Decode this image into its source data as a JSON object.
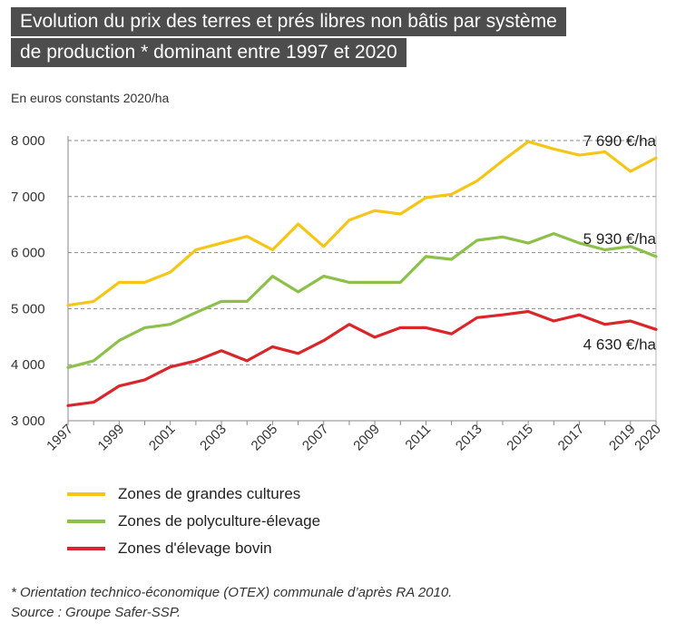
{
  "title": {
    "line1": "Evolution du prix des terres et prés libres non bâtis par système",
    "line2": "de production * dominant entre 1997 et 2020"
  },
  "units_label": "En euros constants 2020/ha",
  "chart_data": {
    "type": "line",
    "x": [
      1997,
      1998,
      1999,
      2000,
      2001,
      2002,
      2003,
      2004,
      2005,
      2006,
      2007,
      2008,
      2009,
      2010,
      2011,
      2012,
      2013,
      2014,
      2015,
      2016,
      2017,
      2018,
      2019,
      2020
    ],
    "x_tick_labels": [
      "1997",
      "1999",
      "2001",
      "2003",
      "2005",
      "2007",
      "2009",
      "2011",
      "2013",
      "2015",
      "2017",
      "2019",
      "2020"
    ],
    "y_tick_labels": [
      "3 000",
      "4 000",
      "5 000",
      "6 000",
      "7 000",
      "8 000"
    ],
    "y_ticks": [
      3000,
      4000,
      5000,
      6000,
      7000,
      8000
    ],
    "ylim": [
      3000,
      8000
    ],
    "grid": "horizontal dashed",
    "series": [
      {
        "name": "Zones de grandes cultures",
        "color": "#f5c518",
        "end_label": "7 690 €/ha",
        "values": [
          5060,
          5130,
          5470,
          5470,
          5650,
          6050,
          6170,
          6290,
          6050,
          6510,
          6110,
          6580,
          6750,
          6690,
          6980,
          7040,
          7280,
          7640,
          7980,
          7850,
          7740,
          7800,
          7450,
          7690
        ]
      },
      {
        "name": "Zones de polyculture-élevage",
        "color": "#8dc04b",
        "end_label": "5 930 €/ha",
        "values": [
          3950,
          4070,
          4430,
          4660,
          4720,
          4930,
          5130,
          5130,
          5580,
          5300,
          5580,
          5470,
          5470,
          5470,
          5930,
          5880,
          6220,
          6280,
          6170,
          6340,
          6170,
          6050,
          6110,
          5930
        ]
      },
      {
        "name": "Zones d'élevage bovin",
        "color": "#d9262a",
        "end_label": "4 630 €/ha",
        "values": [
          3270,
          3330,
          3620,
          3730,
          3960,
          4070,
          4250,
          4070,
          4320,
          4200,
          4430,
          4720,
          4490,
          4660,
          4660,
          4550,
          4840,
          4890,
          4950,
          4780,
          4890,
          4720,
          4780,
          4630
        ]
      }
    ]
  },
  "footnote": "* Orientation technico-économique (OTEX) communale d’après RA 2010.",
  "source": "Source : Groupe Safer-SSP."
}
